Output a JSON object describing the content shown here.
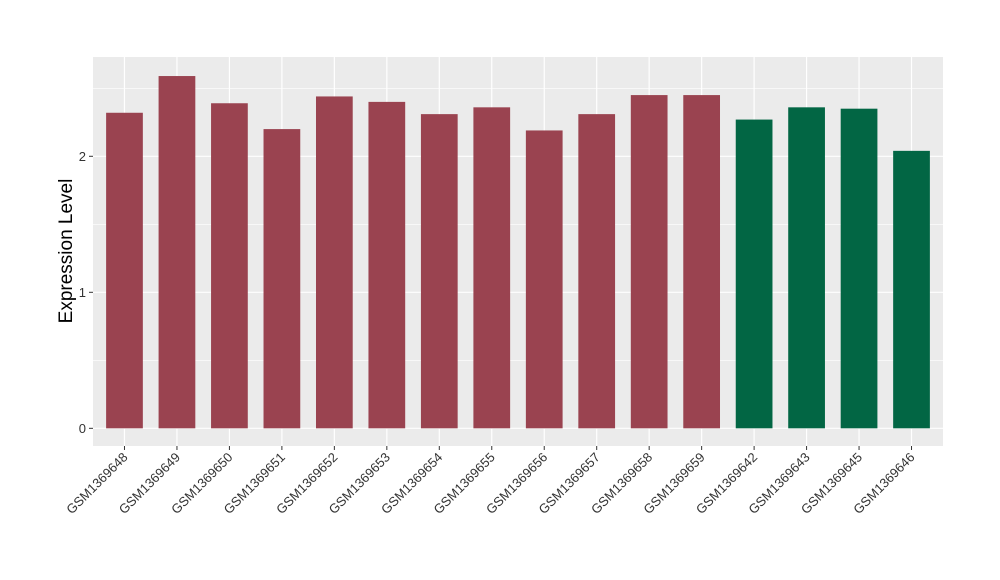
{
  "chart_data": {
    "type": "bar",
    "title": "",
    "xlabel": "",
    "ylabel": "Expression Level",
    "ylim": [
      -0.13,
      2.73
    ],
    "yticks": [
      0,
      1,
      2
    ],
    "grid": true,
    "legend": "none",
    "categories": [
      "GSM1369648",
      "GSM1369649",
      "GSM1369650",
      "GSM1369651",
      "GSM1369652",
      "GSM1369653",
      "GSM1369654",
      "GSM1369655",
      "GSM1369656",
      "GSM1369657",
      "GSM1369658",
      "GSM1369659",
      "GSM1369642",
      "GSM1369643",
      "GSM1369645",
      "GSM1369646"
    ],
    "values": [
      2.32,
      2.59,
      2.39,
      2.2,
      2.44,
      2.4,
      2.31,
      2.36,
      2.19,
      2.31,
      2.45,
      2.45,
      2.27,
      2.36,
      2.35,
      2.04
    ],
    "groups": [
      0,
      0,
      0,
      0,
      0,
      0,
      0,
      0,
      0,
      0,
      0,
      0,
      1,
      1,
      1,
      1
    ],
    "colors": [
      "#9a4350",
      "#026644"
    ],
    "panel_background": "#ebebeb",
    "grid_color": "#ffffff"
  }
}
